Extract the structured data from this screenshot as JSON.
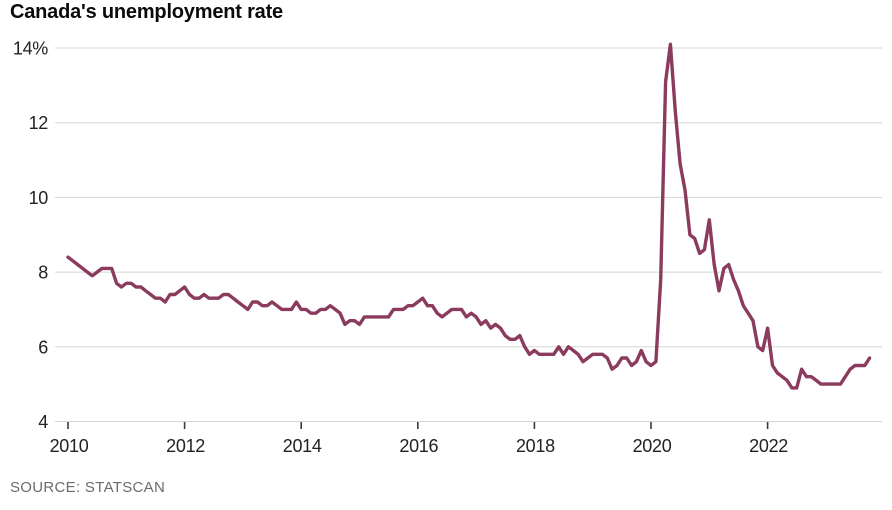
{
  "page": {
    "title": "Canada's unemployment rate",
    "source": "SOURCE: STATSCAN"
  },
  "colors": {
    "line": "#8b3c5e",
    "grid": "#d5d5d5",
    "tick": "#3a3a3a",
    "title_text": "#0b0b0b",
    "axis_text": "#222222",
    "source_text": "#6b6b6b",
    "background": "#ffffff"
  },
  "chart_data": {
    "type": "line",
    "title": "Canada's unemployment rate",
    "source": "SOURCE: STATSCAN",
    "unit": "percent",
    "frequency": "monthly",
    "x_start": "2010-01",
    "x_end": "2023-10",
    "ylim": [
      4,
      14.4
    ],
    "grid": "horizontal",
    "legend": "none",
    "y_ticks": [
      {
        "value": 4,
        "label": "4"
      },
      {
        "value": 6,
        "label": "6"
      },
      {
        "value": 8,
        "label": "8"
      },
      {
        "value": 10,
        "label": "10"
      },
      {
        "value": 12,
        "label": "12"
      },
      {
        "value": 14,
        "label": "14%"
      }
    ],
    "x_ticks": [
      {
        "year": 2010,
        "label": "2010"
      },
      {
        "year": 2012,
        "label": "2012"
      },
      {
        "year": 2014,
        "label": "2014"
      },
      {
        "year": 2016,
        "label": "2016"
      },
      {
        "year": 2018,
        "label": "2018"
      },
      {
        "year": 2020,
        "label": "2020"
      },
      {
        "year": 2022,
        "label": "2022"
      }
    ],
    "series": [
      {
        "name": "Canada unemployment rate (%)",
        "color": "#8b3c5e",
        "values": [
          8.4,
          8.3,
          8.2,
          8.1,
          8.0,
          7.9,
          8.0,
          8.1,
          8.1,
          8.1,
          7.7,
          7.6,
          7.7,
          7.7,
          7.6,
          7.6,
          7.5,
          7.4,
          7.3,
          7.3,
          7.2,
          7.4,
          7.4,
          7.5,
          7.6,
          7.4,
          7.3,
          7.3,
          7.4,
          7.3,
          7.3,
          7.3,
          7.4,
          7.4,
          7.3,
          7.2,
          7.1,
          7.0,
          7.2,
          7.2,
          7.1,
          7.1,
          7.2,
          7.1,
          7.0,
          7.0,
          7.0,
          7.2,
          7.0,
          7.0,
          6.9,
          6.9,
          7.0,
          7.0,
          7.1,
          7.0,
          6.9,
          6.6,
          6.7,
          6.7,
          6.6,
          6.8,
          6.8,
          6.8,
          6.8,
          6.8,
          6.8,
          7.0,
          7.0,
          7.0,
          7.1,
          7.1,
          7.2,
          7.3,
          7.1,
          7.1,
          6.9,
          6.8,
          6.9,
          7.0,
          7.0,
          7.0,
          6.8,
          6.9,
          6.8,
          6.6,
          6.7,
          6.5,
          6.6,
          6.5,
          6.3,
          6.2,
          6.2,
          6.3,
          6.0,
          5.8,
          5.9,
          5.8,
          5.8,
          5.8,
          5.8,
          6.0,
          5.8,
          6.0,
          5.9,
          5.8,
          5.6,
          5.7,
          5.8,
          5.8,
          5.8,
          5.7,
          5.4,
          5.5,
          5.7,
          5.7,
          5.5,
          5.6,
          5.9,
          5.6,
          5.5,
          5.6,
          7.8,
          13.1,
          14.1,
          12.3,
          10.9,
          10.2,
          9.0,
          8.9,
          8.5,
          8.6,
          9.4,
          8.2,
          7.5,
          8.1,
          8.2,
          7.8,
          7.5,
          7.1,
          6.9,
          6.7,
          6.0,
          5.9,
          6.5,
          5.5,
          5.3,
          5.2,
          5.1,
          4.9,
          4.9,
          5.4,
          5.2,
          5.2,
          5.1,
          5.0,
          5.0,
          5.0,
          5.0,
          5.0,
          5.2,
          5.4,
          5.5,
          5.5,
          5.5,
          5.7
        ]
      }
    ]
  }
}
